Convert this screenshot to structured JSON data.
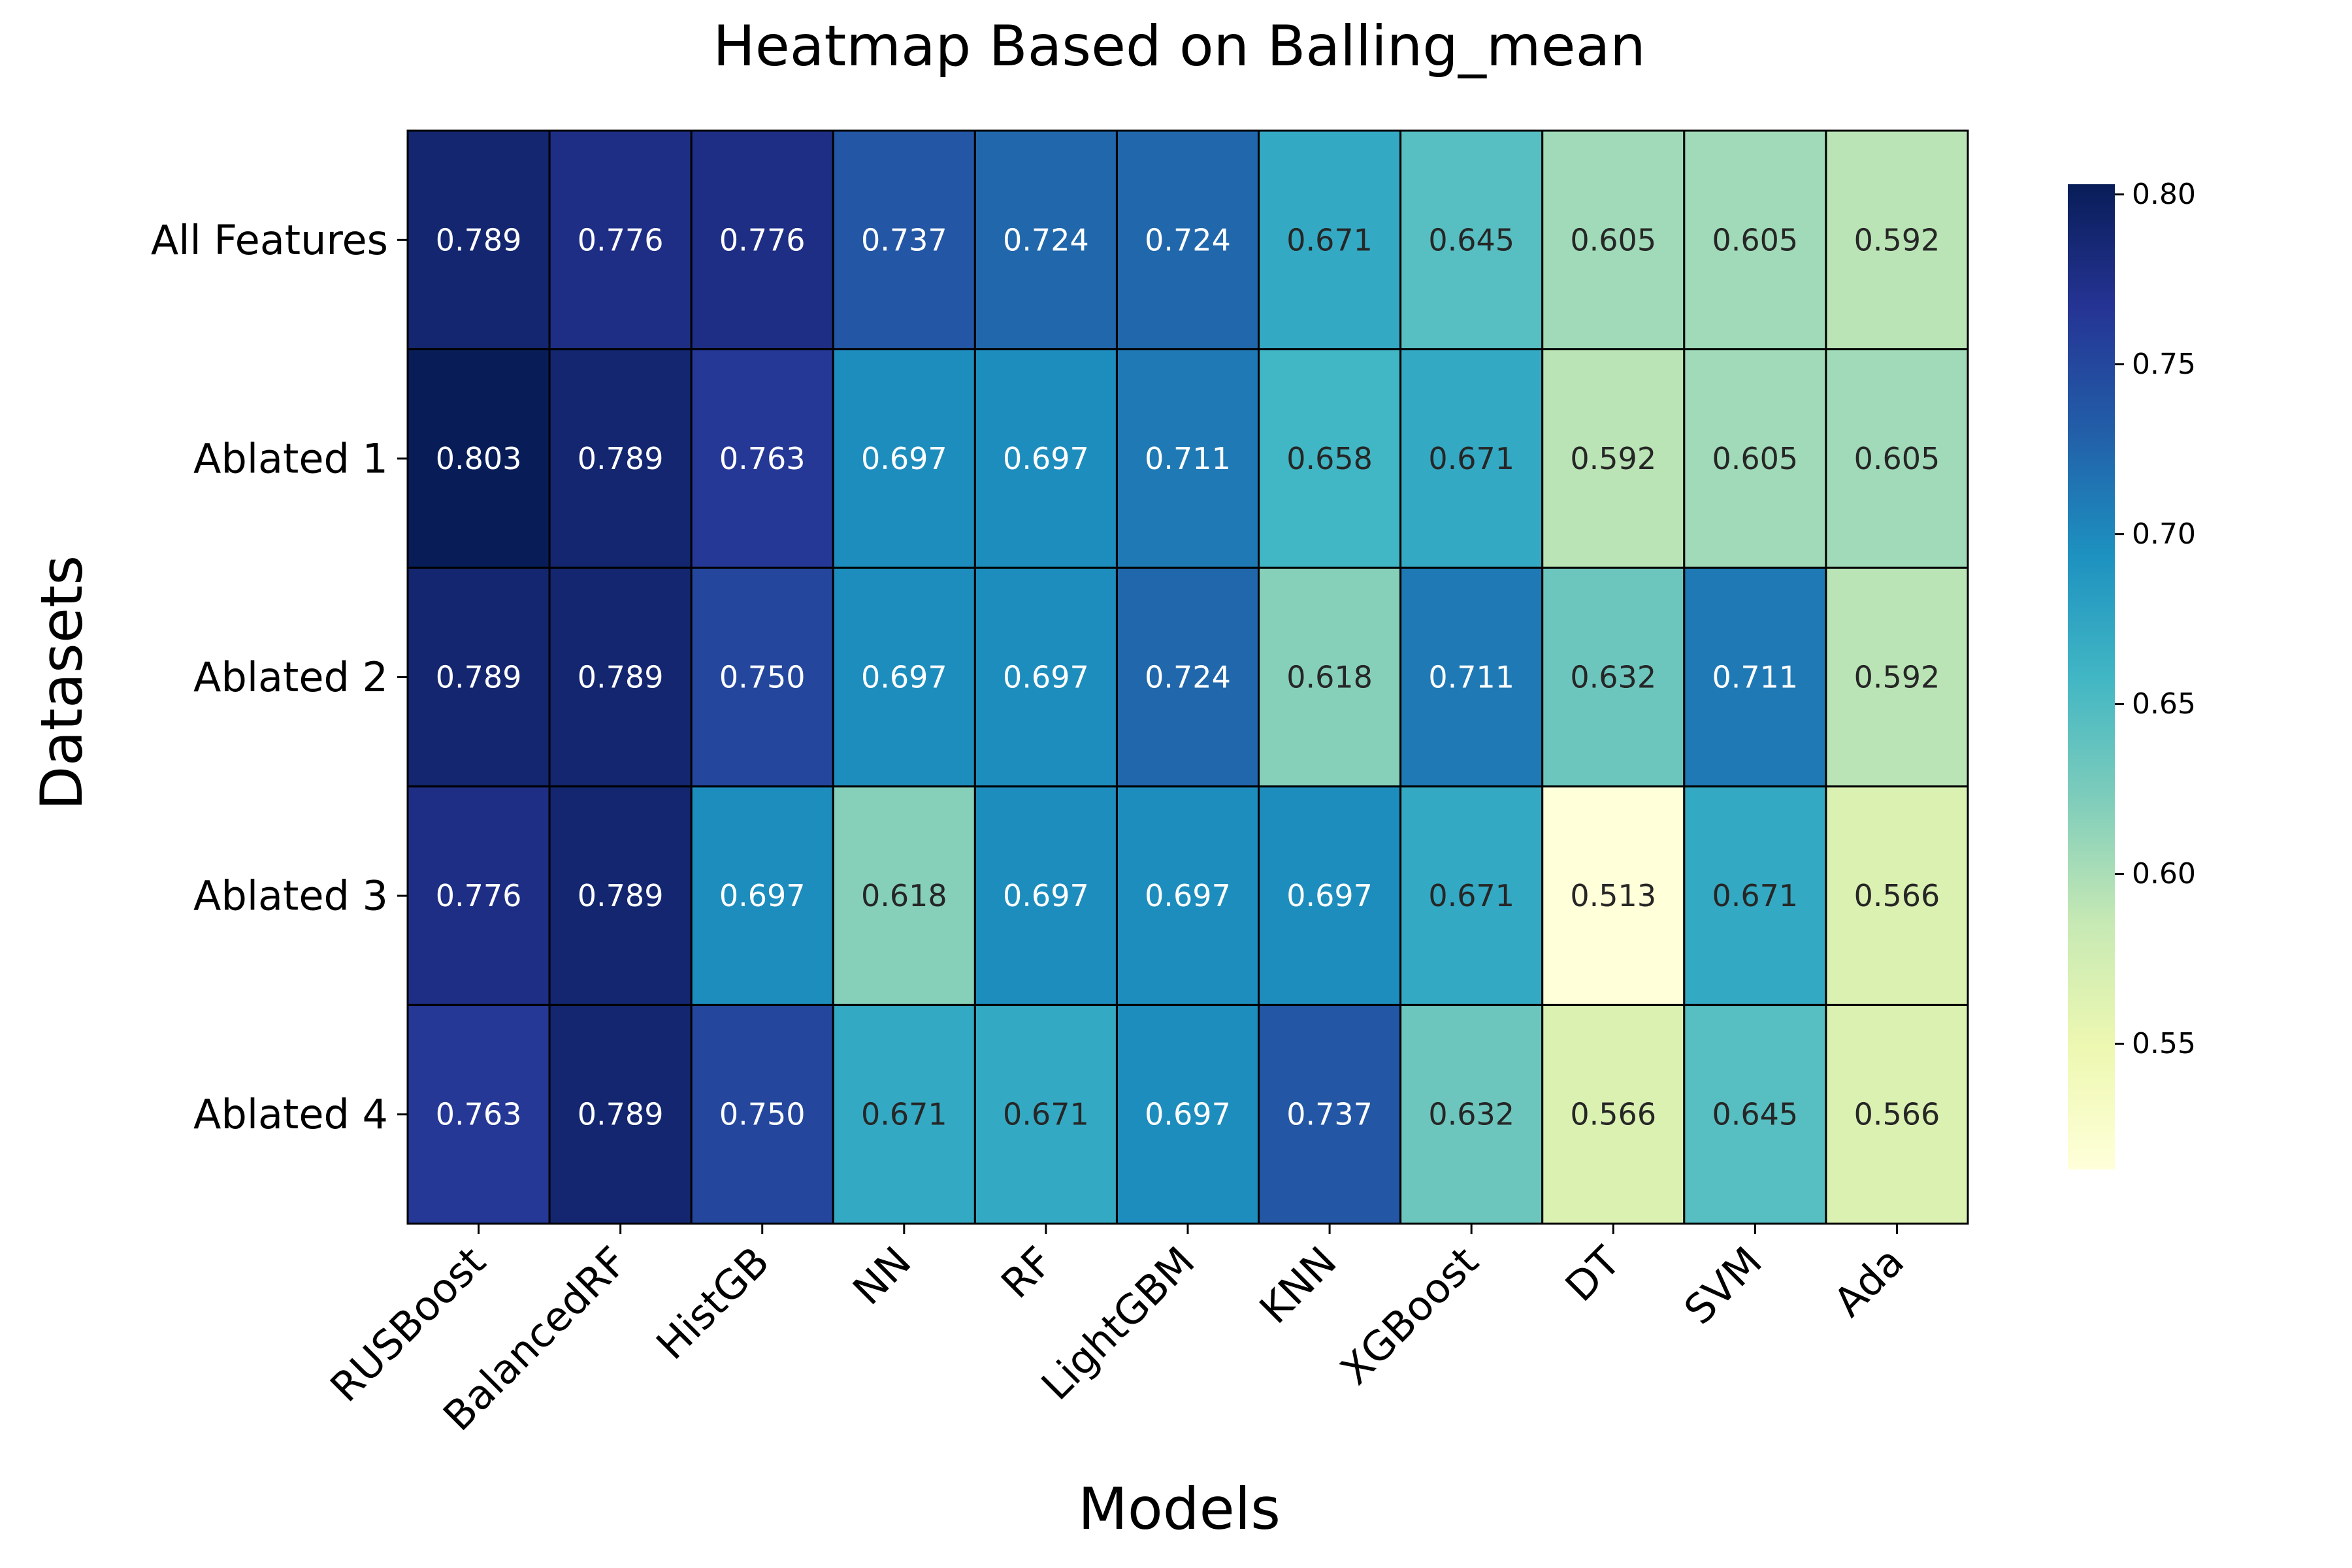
{
  "chart_data": {
    "type": "heatmap",
    "title": "Heatmap Based on Balling_mean",
    "xlabel": "Models",
    "ylabel": "Datasets",
    "x_categories": [
      "RUSBoost",
      "BalancedRF",
      "HistGB",
      "NN",
      "RF",
      "LightGBM",
      "KNN",
      "XGBoost",
      "DT",
      "SVM",
      "Ada"
    ],
    "y_categories": [
      "All Features",
      "Ablated 1",
      "Ablated 2",
      "Ablated 3",
      "Ablated 4"
    ],
    "values": [
      [
        0.789,
        0.776,
        0.776,
        0.737,
        0.724,
        0.724,
        0.671,
        0.645,
        0.605,
        0.605,
        0.592
      ],
      [
        0.803,
        0.789,
        0.763,
        0.697,
        0.697,
        0.711,
        0.658,
        0.671,
        0.592,
        0.605,
        0.605
      ],
      [
        0.789,
        0.789,
        0.75,
        0.697,
        0.697,
        0.724,
        0.618,
        0.711,
        0.632,
        0.711,
        0.592
      ],
      [
        0.776,
        0.789,
        0.697,
        0.618,
        0.697,
        0.697,
        0.697,
        0.671,
        0.513,
        0.671,
        0.566
      ],
      [
        0.763,
        0.789,
        0.75,
        0.671,
        0.671,
        0.697,
        0.737,
        0.632,
        0.566,
        0.645,
        0.566
      ]
    ],
    "value_format": "0.000",
    "colormap": "YlGnBu",
    "color_range": [
      0.513,
      0.803
    ],
    "colorbar_ticks": [
      "0.55",
      "0.60",
      "0.65",
      "0.70",
      "0.75",
      "0.80"
    ],
    "colorbar_tick_values": [
      0.55,
      0.6,
      0.65,
      0.7,
      0.75,
      0.8
    ],
    "legend_placement": "right",
    "cell_border_color": "#000000"
  }
}
